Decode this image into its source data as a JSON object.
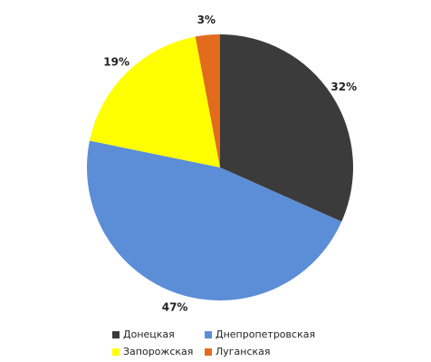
{
  "chart_data": {
    "type": "pie",
    "categories": [
      "Донецкая",
      "Днепропетровская",
      "Запорожская",
      "Луганская"
    ],
    "values": [
      32,
      47,
      19,
      3
    ],
    "value_labels": [
      "32%",
      "47%",
      "19%",
      "3%"
    ],
    "colors": [
      "#3b3b3b",
      "#5b8ed6",
      "#ffff00",
      "#e36c1c"
    ]
  }
}
